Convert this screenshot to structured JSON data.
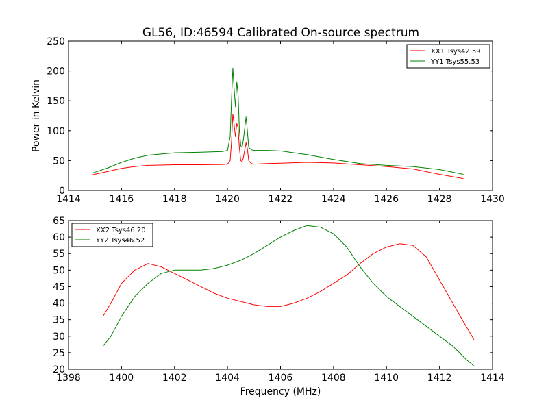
{
  "chart_data": [
    {
      "type": "line",
      "title": "GL56, ID:46594 Calibrated On-source spectrum",
      "xlabel": "",
      "ylabel": "Power in Kelvin",
      "xlim": [
        1414,
        1430
      ],
      "ylim": [
        0,
        250
      ],
      "xticks": [
        1414,
        1416,
        1418,
        1420,
        1422,
        1424,
        1426,
        1428,
        1430
      ],
      "yticks": [
        0,
        50,
        100,
        150,
        200,
        250
      ],
      "legend_position": "upper right",
      "grid": false,
      "series": [
        {
          "name": "XX1 Tsys42.59",
          "color": "#ff0000",
          "x": [
            1414.9,
            1415.5,
            1416.0,
            1416.5,
            1417.0,
            1418.0,
            1419.0,
            1419.8,
            1420.0,
            1420.1,
            1420.15,
            1420.2,
            1420.25,
            1420.3,
            1420.35,
            1420.4,
            1420.45,
            1420.5,
            1420.55,
            1420.6,
            1420.7,
            1420.75,
            1420.8,
            1420.9,
            1421.0,
            1421.5,
            1422.0,
            1423.0,
            1424.0,
            1425.0,
            1426.0,
            1427.0,
            1428.0,
            1428.9
          ],
          "y": [
            26,
            32,
            37,
            40,
            42,
            43,
            43,
            43.5,
            44,
            50,
            80,
            128,
            110,
            90,
            112,
            105,
            70,
            50,
            48,
            55,
            80,
            70,
            50,
            45,
            44,
            45,
            45.5,
            47,
            46,
            43,
            40,
            36,
            27,
            20
          ]
        },
        {
          "name": "YY1 Tsys55.53",
          "color": "#008000",
          "x": [
            1414.9,
            1415.5,
            1416.0,
            1416.5,
            1417.0,
            1418.0,
            1419.0,
            1419.8,
            1420.0,
            1420.1,
            1420.15,
            1420.2,
            1420.25,
            1420.3,
            1420.35,
            1420.4,
            1420.45,
            1420.5,
            1420.55,
            1420.6,
            1420.7,
            1420.75,
            1420.8,
            1420.9,
            1421.0,
            1421.5,
            1422.0,
            1423.0,
            1424.0,
            1425.0,
            1426.0,
            1427.0,
            1428.0,
            1428.9
          ],
          "y": [
            29,
            38,
            47,
            54,
            59,
            63,
            64,
            65,
            67,
            90,
            150,
            205,
            170,
            140,
            182,
            160,
            100,
            75,
            72,
            85,
            123,
            100,
            72,
            68,
            67,
            67,
            66,
            60,
            52,
            45,
            42,
            40,
            35,
            27
          ]
        }
      ]
    },
    {
      "type": "line",
      "title": "",
      "xlabel": "Frequency (MHz)",
      "ylabel": "",
      "xlim": [
        1398,
        1414
      ],
      "ylim": [
        20,
        65
      ],
      "xticks": [
        1398,
        1400,
        1402,
        1404,
        1406,
        1408,
        1410,
        1412,
        1414
      ],
      "yticks": [
        20,
        25,
        30,
        35,
        40,
        45,
        50,
        55,
        60,
        65
      ],
      "legend_position": "upper left",
      "grid": false,
      "series": [
        {
          "name": "XX2 Tsys46.20",
          "color": "#ff0000",
          "x": [
            1399.3,
            1399.6,
            1400.0,
            1400.5,
            1401.0,
            1401.5,
            1402.0,
            1402.5,
            1403.0,
            1403.5,
            1404.0,
            1404.5,
            1405.0,
            1405.5,
            1406.0,
            1406.5,
            1407.0,
            1407.5,
            1408.0,
            1408.5,
            1409.0,
            1409.5,
            1410.0,
            1410.5,
            1411.0,
            1411.5,
            1412.0,
            1412.5,
            1413.0,
            1413.3
          ],
          "y": [
            36,
            40,
            46,
            50,
            52,
            51,
            49,
            47,
            45,
            43,
            41.5,
            40.5,
            39.5,
            39,
            39,
            40,
            41.5,
            43.5,
            46,
            48.5,
            52,
            55,
            57,
            58,
            57.5,
            54,
            47,
            40,
            33,
            29
          ]
        },
        {
          "name": "YY2 Tsys46.52",
          "color": "#008000",
          "x": [
            1399.3,
            1399.6,
            1400.0,
            1400.5,
            1401.0,
            1401.5,
            1402.0,
            1402.5,
            1403.0,
            1403.5,
            1404.0,
            1404.5,
            1405.0,
            1405.5,
            1406.0,
            1406.5,
            1407.0,
            1407.5,
            1408.0,
            1408.5,
            1409.0,
            1409.5,
            1410.0,
            1410.5,
            1411.0,
            1411.5,
            1412.0,
            1412.5,
            1413.0,
            1413.3
          ],
          "y": [
            27,
            30,
            36,
            42,
            46,
            49,
            50,
            50,
            50,
            50.5,
            51.5,
            53,
            55,
            57.5,
            60,
            62,
            63.5,
            63,
            61,
            57,
            51,
            46,
            42,
            39,
            36,
            33,
            30,
            27,
            23,
            21
          ]
        }
      ]
    }
  ]
}
